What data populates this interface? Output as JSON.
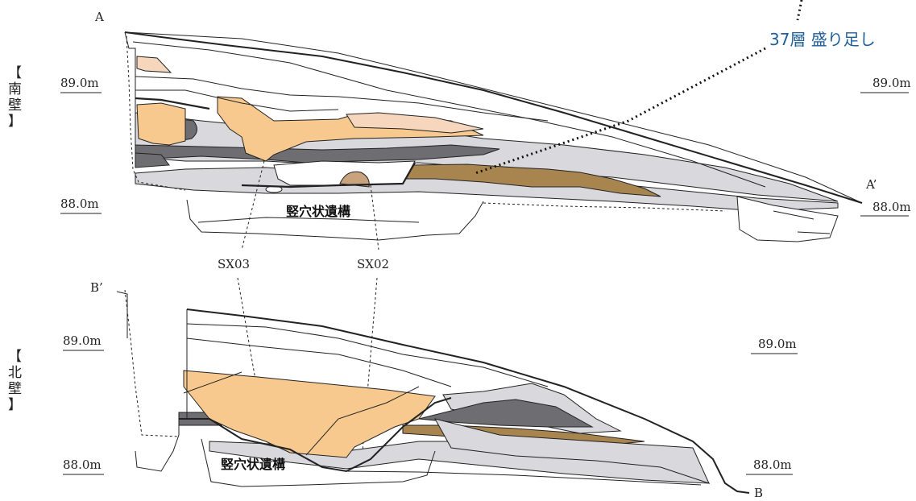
{
  "annotation": {
    "text": "37層 盛り足し"
  },
  "south_wall": {
    "wall_label": [
      "【",
      "南",
      "壁",
      "】"
    ],
    "point_start": "A",
    "point_end": "A’",
    "elev_left_upper": "89.0m",
    "elev_right_upper": "89.0m",
    "elev_left_lower": "88.0m",
    "elev_right_lower": "88.0m",
    "pit_label": "竪穴状遺構"
  },
  "features": {
    "sx03": "SX03",
    "sx02": "SX02"
  },
  "north_wall": {
    "wall_label": [
      "【",
      "北",
      "壁",
      "】"
    ],
    "point_start": "B’",
    "point_end": "B",
    "elev_left_upper": "89.0m",
    "elev_right_upper": "89.0m",
    "elev_left_lower": "88.0m",
    "elev_right_lower": "88.0m",
    "pit_label": "竪穴状遺構"
  },
  "colors": {
    "light_gray": "#d9d8dc",
    "dark_gray": "#6e6e72",
    "orange": "#f8c98e",
    "pale_orange": "#f6d7bd",
    "brown": "#a8854f",
    "tan": "#c9a27e",
    "note_blue": "#1f5f99"
  }
}
